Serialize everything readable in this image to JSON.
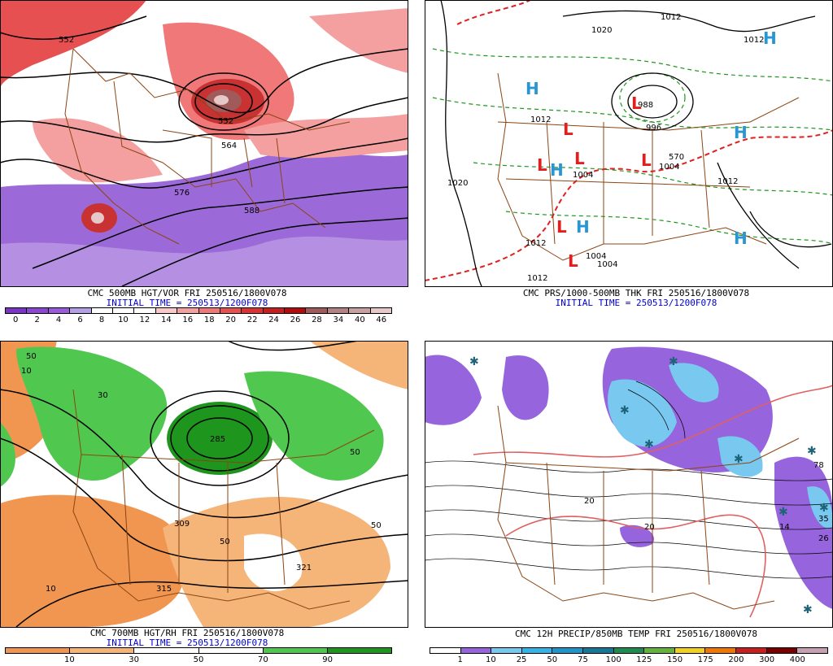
{
  "panels": [
    {
      "id": "p500",
      "caption_line1": "CMC 500MB HGT/VOR FRI 250516/1800V078",
      "caption_line2": "INITIAL TIME = 250513/1200F078",
      "legend_ticks": [
        "0",
        "2",
        "4",
        "6",
        "8",
        "10",
        "12",
        "14",
        "16",
        "18",
        "20",
        "22",
        "24",
        "26",
        "28",
        "34",
        "40",
        "46"
      ],
      "legend_colors": [
        "#7d32c8",
        "#8c46d2",
        "#9b5adc",
        "#b4a0e6",
        "#ffffff",
        "#ffffff",
        "#ffffff",
        "#fac8c8",
        "#f5a0a0",
        "#f07878",
        "#e65050",
        "#dc3232",
        "#c81e1e",
        "#b40a0a",
        "#a05a5a",
        "#b48282",
        "#c8a0a0",
        "#e6c8c8"
      ],
      "contour_labels": [
        "552",
        "552",
        "564",
        "576",
        "588"
      ]
    },
    {
      "id": "pthk",
      "caption_line1": "CMC PRS/1000-500MB THK FRI 250516/1800V078",
      "caption_line2": "INITIAL TIME = 250513/1200F078",
      "contour_labels": [
        "1020",
        "1012",
        "1012",
        "1020",
        "1012",
        "996",
        "988",
        "1004",
        "1004",
        "1004",
        "1012",
        "1012",
        "1004",
        "1012",
        "570"
      ],
      "centers": [
        {
          "type": "H"
        },
        {
          "type": "H"
        },
        {
          "type": "H"
        },
        {
          "type": "H"
        },
        {
          "type": "H"
        },
        {
          "type": "H"
        },
        {
          "type": "L"
        },
        {
          "type": "L"
        },
        {
          "type": "L"
        },
        {
          "type": "L"
        },
        {
          "type": "L"
        },
        {
          "type": "L"
        },
        {
          "type": "L"
        }
      ]
    },
    {
      "id": "p700",
      "caption_line1": "CMC 700MB HGT/RH FRI 250516/1800V078",
      "caption_line2": "INITIAL TIME = 250513/1200F078",
      "legend_ticks": [
        "10",
        "30",
        "50",
        "70",
        "90"
      ],
      "legend_colors": [
        "#f09650",
        "#f5b478",
        "#ffffff",
        "#ffffff",
        "#50c850",
        "#1e961e"
      ],
      "contour_labels": [
        "309",
        "321",
        "315",
        "50",
        "50",
        "10",
        "10",
        "50",
        "30",
        "285",
        "50"
      ]
    },
    {
      "id": "pprecip",
      "caption_line1": "CMC 12H PRECIP/850MB TEMP FRI 250516/1800V078",
      "caption_line2": "",
      "legend_ticks": [
        "1",
        "10",
        "25",
        "50",
        "75",
        "100",
        "125",
        "150",
        "175",
        "200",
        "300",
        "400"
      ],
      "legend_colors": [
        "#ffffff",
        "#9664dc",
        "#78c8f0",
        "#32b4e6",
        "#1e96c8",
        "#147896",
        "#1e8c50",
        "#64b43c",
        "#f0d21e",
        "#f07800",
        "#c81e1e",
        "#780000",
        "#c8a0b4"
      ],
      "contour_labels": [
        "14",
        "78",
        "35",
        "26",
        "20",
        "20"
      ]
    }
  ]
}
